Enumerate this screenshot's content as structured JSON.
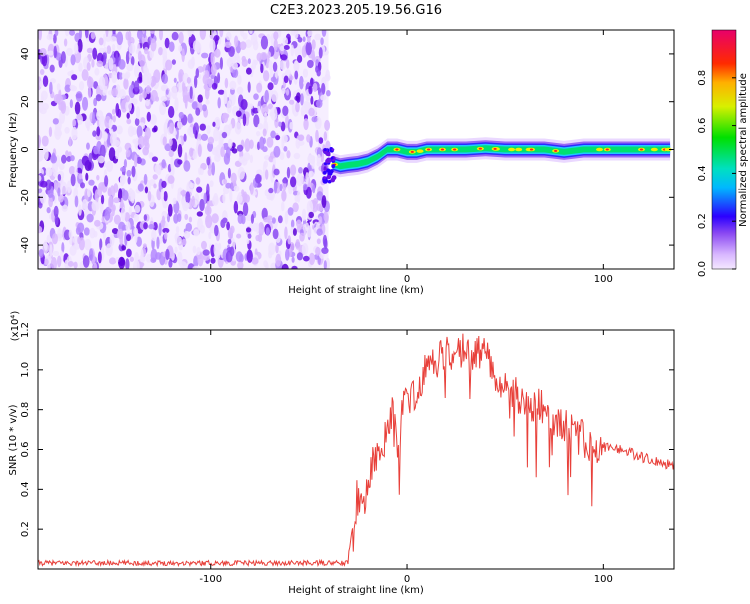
{
  "title": "C2E3.2023.205.19.56.G16",
  "colors": {
    "snr_line": "#e8403a",
    "noise_palette": [
      "#efe2ff",
      "#d9b8ff",
      "#b488ff",
      "#8a48f2",
      "#6a12e6",
      "#5a00d8"
    ],
    "signal_palette": [
      "#20c8ff",
      "#00e070",
      "#f0f000",
      "#ff2020",
      "#e8005a"
    ]
  },
  "chart_data": [
    {
      "type": "heatmap",
      "title": "",
      "xlabel": "Height of straight line (km)",
      "ylabel": "Frequency (Hz)",
      "xlim": [
        -188,
        136
      ],
      "ylim": [
        -50,
        50
      ],
      "xticks": [
        -100,
        0,
        100
      ],
      "yticks": [
        -40,
        -20,
        0,
        20,
        40
      ],
      "noise_region": {
        "x": [
          -188,
          -40
        ],
        "frequency": [
          -50,
          50
        ]
      },
      "signal_track": {
        "x": [
          -38,
          -34,
          -30,
          -25,
          -20,
          -15,
          -10,
          -5,
          0,
          5,
          10,
          20,
          30,
          40,
          50,
          60,
          70,
          80,
          90,
          100,
          110,
          120,
          134
        ],
        "frequency": [
          -6,
          -7,
          -6.5,
          -6,
          -5,
          -3,
          0,
          0,
          -1,
          -1,
          0,
          0,
          0,
          0.5,
          0,
          0,
          0,
          -1,
          0,
          0,
          0,
          0,
          0
        ]
      },
      "colorbar": {
        "label": "Normalized spectral amplitude",
        "range": [
          0,
          1
        ],
        "ticks": [
          "0.0",
          "0.2",
          "0.4",
          "0.6",
          "0.8"
        ]
      }
    },
    {
      "type": "line",
      "title": "",
      "xlabel": "Height of straight line (km)",
      "ylabel": "SNR (10 * v/v)",
      "scale_label": "(x10⁴)",
      "xlim": [
        -188,
        136
      ],
      "ylim": [
        0,
        1.2
      ],
      "xticks": [
        -100,
        0,
        100
      ],
      "yticks": [
        "0.2",
        "0.4",
        "0.6",
        "0.8",
        "1.0",
        "1.2"
      ],
      "series": [
        {
          "x": [
            -188,
            -150,
            -100,
            -50,
            -30,
            -28,
            -25,
            -22,
            -20,
            -18,
            -15,
            -12,
            -10,
            -8,
            -5,
            -2,
            0,
            2,
            5,
            8,
            10,
            15,
            20,
            25,
            30,
            35,
            40,
            45,
            50,
            55,
            60,
            65,
            70,
            75,
            80,
            85,
            90,
            94,
            98,
            102,
            110,
            120,
            130,
            136
          ],
          "y": [
            0.03,
            0.03,
            0.03,
            0.03,
            0.03,
            0.2,
            0.38,
            0.3,
            0.42,
            0.55,
            0.58,
            0.62,
            0.7,
            0.78,
            0.65,
            0.78,
            0.88,
            0.83,
            0.92,
            0.97,
            1.02,
            1.05,
            1.08,
            1.1,
            1.1,
            1.08,
            1.08,
            0.98,
            0.92,
            0.88,
            0.82,
            0.82,
            0.8,
            0.75,
            0.72,
            0.68,
            0.65,
            0.58,
            0.62,
            0.62,
            0.6,
            0.56,
            0.53,
            0.52
          ]
        }
      ]
    }
  ]
}
